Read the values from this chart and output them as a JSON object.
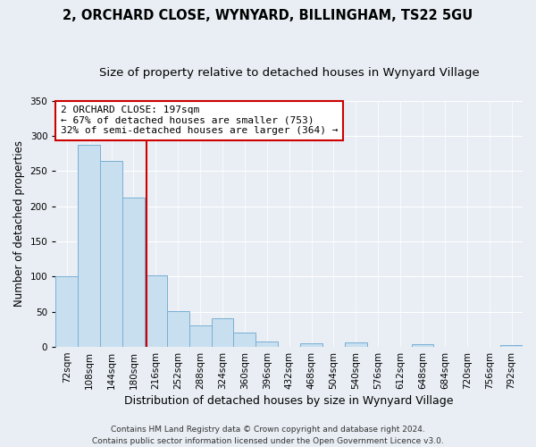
{
  "title": "2, ORCHARD CLOSE, WYNYARD, BILLINGHAM, TS22 5GU",
  "subtitle": "Size of property relative to detached houses in Wynyard Village",
  "xlabel": "Distribution of detached houses by size in Wynyard Village",
  "ylabel": "Number of detached properties",
  "bar_color": "#c8dff0",
  "bar_edge_color": "#7aafd4",
  "vline_color": "#cc0000",
  "vline_x": 3.6,
  "annotation_title": "2 ORCHARD CLOSE: 197sqm",
  "annotation_line1": "← 67% of detached houses are smaller (753)",
  "annotation_line2": "32% of semi-detached houses are larger (364) →",
  "annotation_box_color": "#ffffff",
  "annotation_box_edge": "#cc0000",
  "bins": [
    "72sqm",
    "108sqm",
    "144sqm",
    "180sqm",
    "216sqm",
    "252sqm",
    "288sqm",
    "324sqm",
    "360sqm",
    "396sqm",
    "432sqm",
    "468sqm",
    "504sqm",
    "540sqm",
    "576sqm",
    "612sqm",
    "648sqm",
    "684sqm",
    "720sqm",
    "756sqm",
    "792sqm"
  ],
  "values": [
    100,
    287,
    265,
    212,
    102,
    51,
    30,
    41,
    20,
    8,
    0,
    5,
    0,
    7,
    0,
    0,
    4,
    0,
    0,
    0,
    2
  ],
  "ylim": [
    0,
    350
  ],
  "yticks": [
    0,
    50,
    100,
    150,
    200,
    250,
    300,
    350
  ],
  "background_color": "#e8eef4",
  "grid_color": "#ffffff",
  "footer": "Contains HM Land Registry data © Crown copyright and database right 2024.\nContains public sector information licensed under the Open Government Licence v3.0.",
  "title_fontsize": 10.5,
  "subtitle_fontsize": 9.5,
  "xlabel_fontsize": 9,
  "ylabel_fontsize": 8.5,
  "tick_fontsize": 7.5,
  "footer_fontsize": 6.5
}
